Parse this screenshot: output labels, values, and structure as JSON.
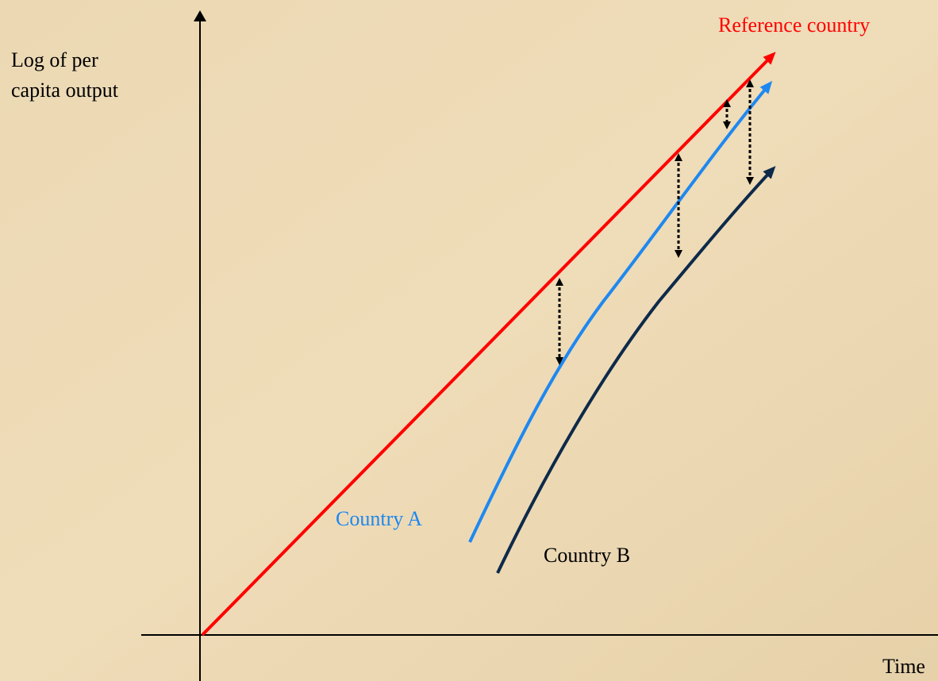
{
  "y_axis_label": {
    "lines": [
      "Log of per",
      "capita output"
    ]
  },
  "x_axis_label": "Time",
  "curves": {
    "reference": "Reference country",
    "country_a": "Country A",
    "country_b": "Country B"
  }
}
